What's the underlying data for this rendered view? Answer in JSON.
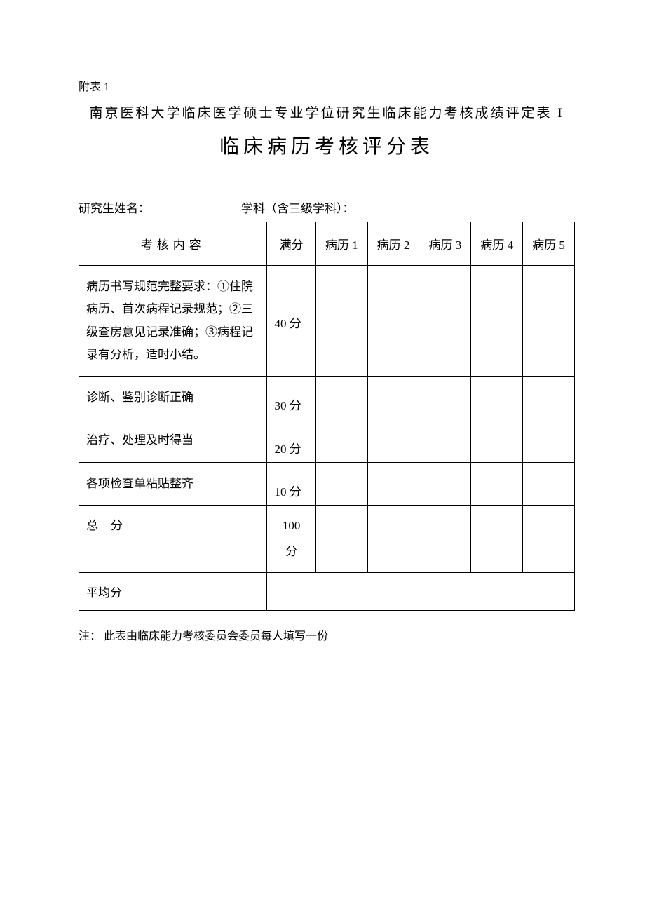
{
  "appendix_label": "附表 1",
  "heading_line1": "南京医科大学临床医学硕士专业学位研究生临床能力考核成绩评定表 I",
  "heading_line2": "临床病历考核评分表",
  "info": {
    "name_label": "研究生姓名：",
    "subject_label": "学科（含三级学科）："
  },
  "table": {
    "header": {
      "content": "考核内容",
      "full_score": "满分",
      "case1": "病历 1",
      "case2": "病历 2",
      "case3": "病历 3",
      "case4": "病历 4",
      "case5": "病历 5"
    },
    "rows": [
      {
        "content": "病历书写规范完整要求：①住院病历、首次病程记录规范；②三级查房意见记录准确；③病程记录有分析，适时小结。",
        "score": "40 分"
      },
      {
        "content": "诊断、鉴别诊断正确",
        "score": "30 分"
      },
      {
        "content": "治疗、处理及时得当",
        "score": "20 分"
      },
      {
        "content": "各项检查单粘贴整齐",
        "score": "10 分"
      }
    ],
    "total": {
      "label_prefix": "总",
      "label_suffix": "分",
      "score_num": "100",
      "score_unit": "分"
    },
    "average_label": "平均分"
  },
  "footnote": "注：  此表由临床能力考核委员会委员每人填写一份"
}
